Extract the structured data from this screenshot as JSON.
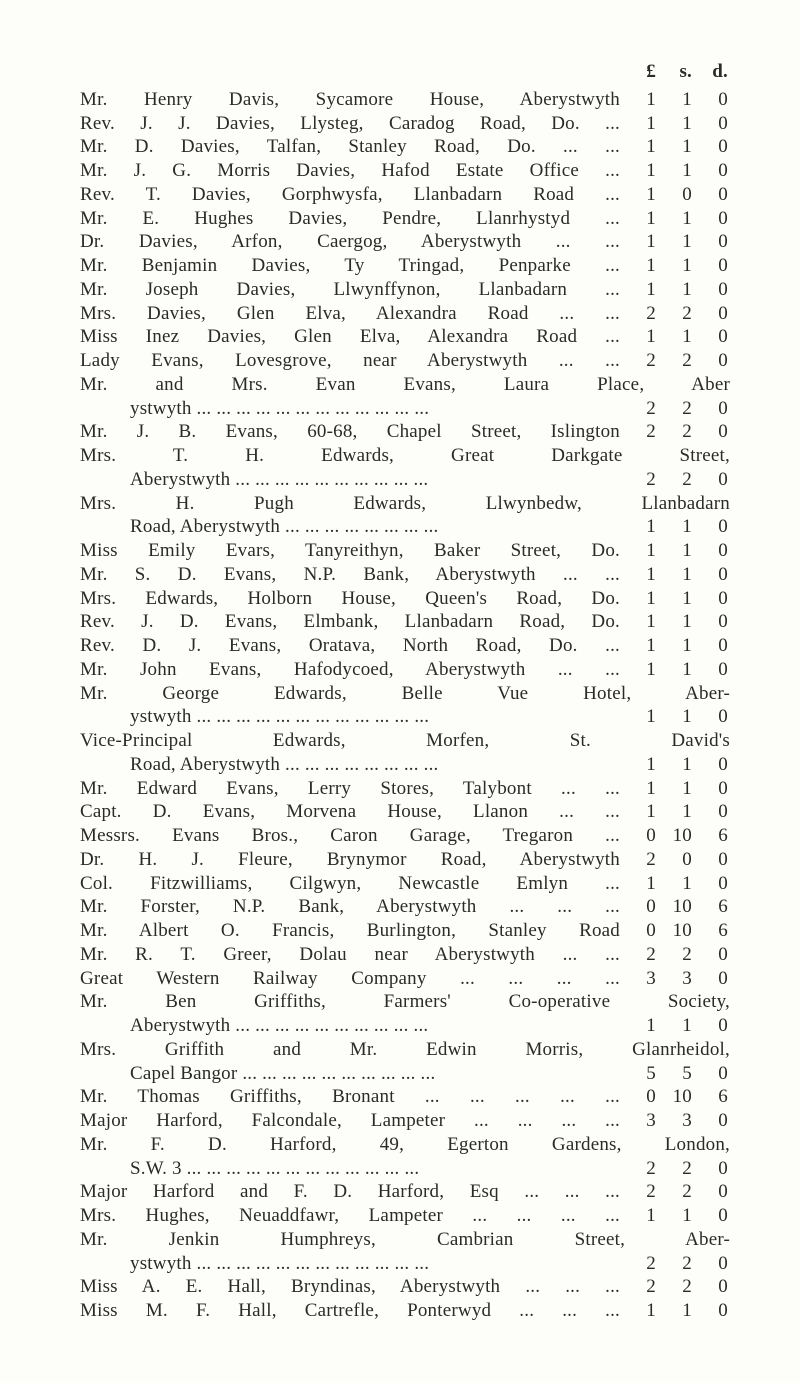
{
  "header": {
    "l": "£",
    "s": "s.",
    "d": "d."
  },
  "entries": [
    {
      "name": "Mr. Henry Davis, Sycamore House, Aberystwyth",
      "l": "1",
      "s": "1",
      "d": "0"
    },
    {
      "name": "Rev. J. J. Davies, Llysteg, Caradog Road, Do. ...",
      "l": "1",
      "s": "1",
      "d": "0"
    },
    {
      "name": "Mr. D. Davies, Talfan, Stanley Road, Do. ... ...",
      "l": "1",
      "s": "1",
      "d": "0"
    },
    {
      "name": "Mr. J. G. Morris Davies, Hafod Estate Office ...",
      "l": "1",
      "s": "1",
      "d": "0"
    },
    {
      "name": "Rev. T. Davies, Gorphwysfa, Llanbadarn Road ...",
      "l": "1",
      "s": "0",
      "d": "0"
    },
    {
      "name": "Mr. E. Hughes Davies, Pendre, Llanrhystyd ...",
      "l": "1",
      "s": "1",
      "d": "0"
    },
    {
      "name": "Dr. Davies, Arfon, Caergog, Aberystwyth ... ...",
      "l": "1",
      "s": "1",
      "d": "0"
    },
    {
      "name": "Mr. Benjamin Davies, Ty Tringad, Penparke ...",
      "l": "1",
      "s": "1",
      "d": "0"
    },
    {
      "name": "Mr. Joseph Davies, Llwynffynon, Llanbadarn ...",
      "l": "1",
      "s": "1",
      "d": "0"
    },
    {
      "name": "Mrs. Davies, Glen Elva, Alexandra Road ... ...",
      "l": "2",
      "s": "2",
      "d": "0"
    },
    {
      "name": "Miss Inez Davies, Glen Elva, Alexandra Road ...",
      "l": "1",
      "s": "1",
      "d": "0"
    },
    {
      "name": "Lady Evans, Lovesgrove, near Aberystwyth ... ...",
      "l": "2",
      "s": "2",
      "d": "0"
    },
    {
      "multiline": true,
      "line1": "Mr. and Mrs. Evan Evans, Laura Place, Aber",
      "line2": "ystwyth ... ... ... ... ... ... ... ... ... ... ... ...",
      "l": "2",
      "s": "2",
      "d": "0"
    },
    {
      "name": "Mr. J. B. Evans, 60-68, Chapel Street, Islington",
      "l": "2",
      "s": "2",
      "d": "0"
    },
    {
      "multiline": true,
      "line1": "Mrs. T. H. Edwards, Great Darkgate Street,",
      "line2": "Aberystwyth ... ... ... ... ... ... ... ... ... ...",
      "l": "2",
      "s": "2",
      "d": "0"
    },
    {
      "multiline": true,
      "line1": "Mrs. H. Pugh Edwards, Llwynbedw, Llanbadarn",
      "line2": "Road, Aberystwyth ... ... ... ... ... ... ... ...",
      "l": "1",
      "s": "1",
      "d": "0"
    },
    {
      "name": "Miss Emily Evars, Tanyreithyn, Baker Street, Do.",
      "l": "1",
      "s": "1",
      "d": "0"
    },
    {
      "name": "Mr. S. D. Evans, N.P. Bank, Aberystwyth ... ...",
      "l": "1",
      "s": "1",
      "d": "0"
    },
    {
      "name": "Mrs. Edwards, Holborn House, Queen's Road, Do.",
      "l": "1",
      "s": "1",
      "d": "0"
    },
    {
      "name": "Rev. J. D. Evans, Elmbank, Llanbadarn Road, Do.",
      "l": "1",
      "s": "1",
      "d": "0"
    },
    {
      "name": "Rev. D. J. Evans, Oratava, North Road, Do. ...",
      "l": "1",
      "s": "1",
      "d": "0"
    },
    {
      "name": "Mr. John Evans, Hafodycoed, Aberystwyth ... ...",
      "l": "1",
      "s": "1",
      "d": "0"
    },
    {
      "multiline": true,
      "line1": "Mr. George Edwards, Belle Vue Hotel, Aber-",
      "line2": "ystwyth ... ... ... ... ... ... ... ... ... ... ... ...",
      "l": "1",
      "s": "1",
      "d": "0"
    },
    {
      "multiline": true,
      "line1": "Vice-Principal Edwards, Morfen, St. David's",
      "line2": "Road, Aberystwyth ... ... ... ... ... ... ... ...",
      "l": "1",
      "s": "1",
      "d": "0"
    },
    {
      "name": "Mr. Edward Evans, Lerry Stores, Talybont ... ...",
      "l": "1",
      "s": "1",
      "d": "0"
    },
    {
      "name": "Capt. D. Evans, Morvena House, Llanon ... ...",
      "l": "1",
      "s": "1",
      "d": "0"
    },
    {
      "name": "Messrs. Evans Bros., Caron Garage, Tregaron ...",
      "l": "0",
      "s": "10",
      "d": "6"
    },
    {
      "name": "Dr. H. J. Fleure, Brynymor Road, Aberystwyth",
      "l": "2",
      "s": "0",
      "d": "0"
    },
    {
      "name": "Col. Fitzwilliams, Cilgwyn, Newcastle Emlyn ...",
      "l": "1",
      "s": "1",
      "d": "0"
    },
    {
      "name": "Mr. Forster, N.P. Bank, Aberystwyth ... ... ...",
      "l": "0",
      "s": "10",
      "d": "6"
    },
    {
      "name": "Mr. Albert O. Francis, Burlington, Stanley Road",
      "l": "0",
      "s": "10",
      "d": "6"
    },
    {
      "name": "Mr. R. T. Greer, Dolau near Aberystwyth ... ...",
      "l": "2",
      "s": "2",
      "d": "0"
    },
    {
      "name": "Great Western Railway Company ... ... ... ...",
      "l": "3",
      "s": "3",
      "d": "0"
    },
    {
      "multiline": true,
      "line1": "Mr. Ben Griffiths, Farmers' Co-operative Society,",
      "line2": "Aberystwyth ... ... ... ... ... ... ... ... ... ...",
      "l": "1",
      "s": "1",
      "d": "0"
    },
    {
      "multiline": true,
      "line1": "Mrs. Griffith and Mr. Edwin Morris, Glanrheidol,",
      "line2": "Capel Bangor ... ... ... ... ... ... ... ... ... ...",
      "l": "5",
      "s": "5",
      "d": "0"
    },
    {
      "name": "Mr. Thomas Griffiths, Bronant ... ... ... ... ...",
      "l": "0",
      "s": "10",
      "d": "6"
    },
    {
      "name": "Major Harford, Falcondale, Lampeter ... ... ... ...",
      "l": "3",
      "s": "3",
      "d": "0"
    },
    {
      "multiline": true,
      "line1": "Mr. F. D. Harford, 49, Egerton Gardens, London,",
      "line2": "S.W. 3 ... ... ... ... ... ... ... ... ... ... ... ...",
      "l": "2",
      "s": "2",
      "d": "0"
    },
    {
      "name": "Major Harford and F. D. Harford, Esq ... ... ...",
      "l": "2",
      "s": "2",
      "d": "0"
    },
    {
      "name": "Mrs. Hughes, Neuaddfawr, Lampeter ... ... ... ...",
      "l": "1",
      "s": "1",
      "d": "0"
    },
    {
      "multiline": true,
      "line1": "Mr. Jenkin Humphreys, Cambrian Street, Aber-",
      "line2": "ystwyth ... ... ... ... ... ... ... ... ... ... ... ...",
      "l": "2",
      "s": "2",
      "d": "0"
    },
    {
      "name": "Miss A. E. Hall, Bryndinas, Aberystwyth ... ... ...",
      "l": "2",
      "s": "2",
      "d": "0"
    },
    {
      "name": "Miss M. F. Hall, Cartrefle, Ponterwyd ... ... ...",
      "l": "1",
      "s": "1",
      "d": "0"
    }
  ]
}
